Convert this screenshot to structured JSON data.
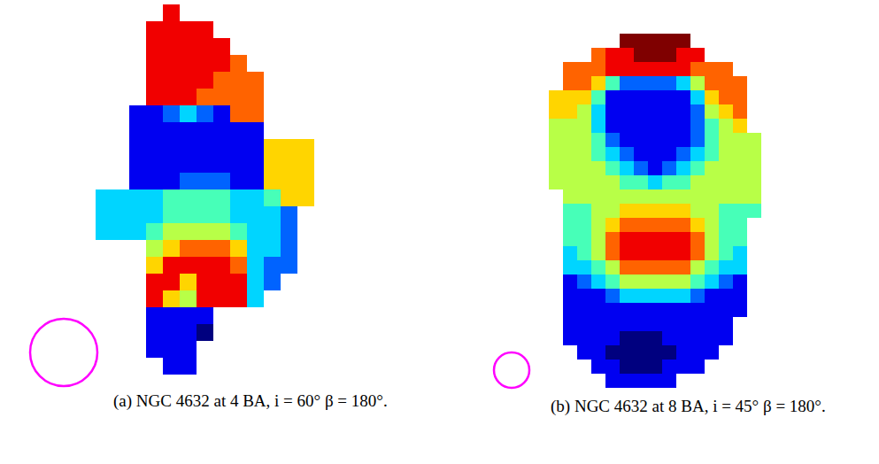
{
  "chart_data": [
    {
      "type": "heatmap",
      "caption": "(a) NGC 4632 at 4 BA, i = 60° β = 180°.",
      "vlim": [
        0,
        9
      ],
      "tick_labels": false,
      "cells": [
        [
          null,
          null,
          null,
          null,
          8,
          null,
          null,
          null,
          null,
          null,
          null,
          null,
          null,
          null
        ],
        [
          null,
          null,
          null,
          8,
          8,
          8,
          8,
          null,
          null,
          null,
          null,
          null,
          null,
          null
        ],
        [
          null,
          null,
          null,
          8,
          8,
          8,
          8,
          8,
          null,
          null,
          null,
          null,
          null,
          null
        ],
        [
          null,
          null,
          null,
          8,
          8,
          8,
          8,
          8,
          7,
          null,
          null,
          null,
          null,
          null
        ],
        [
          null,
          null,
          null,
          8,
          8,
          8,
          8,
          7,
          7,
          7,
          null,
          null,
          null,
          null
        ],
        [
          null,
          null,
          null,
          8,
          8,
          8,
          7,
          7,
          7,
          7,
          null,
          null,
          null,
          null
        ],
        [
          null,
          null,
          1,
          1,
          2,
          3,
          2,
          1,
          7,
          7,
          null,
          null,
          null,
          null
        ],
        [
          null,
          null,
          1,
          1,
          1,
          1,
          1,
          1,
          1,
          1,
          null,
          null,
          null,
          null
        ],
        [
          null,
          null,
          1,
          1,
          1,
          1,
          1,
          1,
          1,
          1,
          6,
          6,
          6,
          null
        ],
        [
          null,
          null,
          1,
          1,
          1,
          1,
          1,
          1,
          1,
          1,
          6,
          6,
          6,
          null
        ],
        [
          null,
          null,
          1,
          1,
          1,
          2,
          2,
          2,
          1,
          1,
          6,
          6,
          6,
          null
        ],
        [
          3,
          3,
          3,
          3,
          4,
          4,
          4,
          4,
          3,
          3,
          4,
          6,
          6,
          null
        ],
        [
          3,
          3,
          3,
          3,
          4,
          4,
          4,
          4,
          3,
          3,
          3,
          2,
          null,
          null
        ],
        [
          3,
          3,
          3,
          4,
          5,
          5,
          5,
          5,
          4,
          3,
          3,
          2,
          null,
          null
        ],
        [
          null,
          null,
          null,
          5,
          6,
          7,
          7,
          7,
          6,
          3,
          3,
          2,
          null,
          null
        ],
        [
          null,
          null,
          null,
          6,
          8,
          8,
          8,
          8,
          7,
          3,
          2,
          2,
          null,
          null
        ],
        [
          null,
          null,
          null,
          8,
          8,
          6,
          8,
          8,
          8,
          3,
          2,
          null,
          null,
          null
        ],
        [
          null,
          null,
          null,
          8,
          6,
          5,
          8,
          8,
          8,
          3,
          null,
          null,
          null,
          null
        ],
        [
          null,
          null,
          null,
          1,
          1,
          1,
          1,
          null,
          null,
          null,
          null,
          null,
          null,
          null
        ],
        [
          null,
          null,
          null,
          1,
          1,
          1,
          0,
          null,
          null,
          null,
          null,
          null,
          null,
          null
        ],
        [
          null,
          null,
          null,
          1,
          1,
          1,
          null,
          null,
          null,
          null,
          null,
          null,
          null,
          null
        ],
        [
          null,
          null,
          null,
          null,
          1,
          1,
          null,
          null,
          null,
          null,
          null,
          null,
          null,
          null
        ]
      ]
    },
    {
      "type": "heatmap",
      "caption": "(b) NGC 4632 at 8 BA, i = 45° β = 180°.",
      "vlim": [
        0,
        9
      ],
      "tick_labels": false,
      "cells": [
        [
          null,
          null,
          null,
          null,
          null,
          9,
          9,
          9,
          9,
          9,
          null,
          null,
          null,
          null,
          null,
          null
        ],
        [
          null,
          null,
          null,
          7,
          8,
          8,
          9,
          9,
          9,
          8,
          8,
          null,
          null,
          null,
          null,
          null
        ],
        [
          null,
          7,
          7,
          7,
          8,
          8,
          8,
          8,
          8,
          8,
          7,
          7,
          7,
          null,
          null,
          null
        ],
        [
          null,
          7,
          7,
          6,
          4,
          2,
          2,
          2,
          2,
          3,
          5,
          7,
          7,
          7,
          null,
          null
        ],
        [
          6,
          6,
          6,
          4,
          1,
          1,
          1,
          1,
          1,
          1,
          3,
          6,
          7,
          7,
          null,
          null
        ],
        [
          6,
          6,
          5,
          3,
          1,
          1,
          1,
          1,
          1,
          1,
          2,
          5,
          6,
          7,
          null,
          null
        ],
        [
          5,
          5,
          5,
          3,
          1,
          1,
          1,
          1,
          1,
          1,
          2,
          4,
          5,
          6,
          null,
          null
        ],
        [
          5,
          5,
          5,
          4,
          2,
          1,
          1,
          1,
          1,
          1,
          2,
          4,
          5,
          5,
          5,
          null
        ],
        [
          5,
          5,
          5,
          4,
          3,
          2,
          1,
          1,
          1,
          2,
          3,
          4,
          5,
          5,
          5,
          null
        ],
        [
          5,
          5,
          5,
          5,
          4,
          3,
          2,
          1,
          2,
          3,
          4,
          5,
          5,
          5,
          5,
          null
        ],
        [
          5,
          5,
          5,
          5,
          5,
          4,
          4,
          3,
          4,
          4,
          5,
          5,
          5,
          5,
          5,
          null
        ],
        [
          null,
          5,
          5,
          5,
          5,
          5,
          5,
          5,
          5,
          5,
          5,
          5,
          5,
          5,
          5,
          null
        ],
        [
          null,
          4,
          4,
          5,
          5,
          6,
          6,
          6,
          6,
          6,
          5,
          5,
          4,
          4,
          4,
          null
        ],
        [
          null,
          4,
          4,
          5,
          6,
          7,
          7,
          7,
          7,
          7,
          6,
          5,
          4,
          4,
          null,
          null
        ],
        [
          null,
          4,
          4,
          5,
          7,
          8,
          8,
          8,
          8,
          8,
          7,
          5,
          4,
          4,
          null,
          null
        ],
        [
          null,
          3,
          4,
          5,
          7,
          8,
          8,
          8,
          8,
          8,
          7,
          5,
          4,
          3,
          null,
          null
        ],
        [
          null,
          3,
          3,
          4,
          5,
          7,
          7,
          7,
          7,
          7,
          5,
          4,
          3,
          3,
          null,
          null
        ],
        [
          null,
          1,
          2,
          3,
          4,
          5,
          5,
          5,
          5,
          5,
          4,
          3,
          2,
          1,
          null,
          null
        ],
        [
          null,
          1,
          1,
          1,
          2,
          3,
          3,
          3,
          3,
          3,
          2,
          1,
          1,
          1,
          null,
          null
        ],
        [
          null,
          1,
          1,
          1,
          1,
          1,
          1,
          1,
          1,
          1,
          1,
          1,
          1,
          1,
          null,
          null
        ],
        [
          null,
          1,
          1,
          1,
          1,
          1,
          1,
          1,
          1,
          1,
          1,
          1,
          1,
          null,
          null,
          null
        ],
        [
          null,
          1,
          1,
          1,
          1,
          0,
          0,
          0,
          1,
          1,
          1,
          1,
          1,
          null,
          null,
          null
        ],
        [
          null,
          null,
          1,
          1,
          0,
          0,
          0,
          0,
          0,
          1,
          1,
          1,
          null,
          null,
          null,
          null
        ],
        [
          null,
          null,
          null,
          1,
          1,
          0,
          0,
          0,
          1,
          1,
          1,
          null,
          null,
          null,
          null,
          null
        ],
        [
          null,
          null,
          null,
          null,
          1,
          1,
          1,
          1,
          1,
          null,
          null,
          null,
          null,
          null,
          null,
          null
        ]
      ]
    }
  ]
}
